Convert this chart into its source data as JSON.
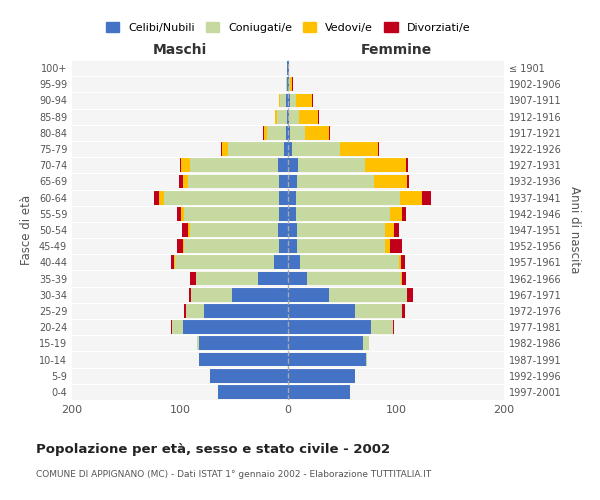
{
  "age_groups": [
    "0-4",
    "5-9",
    "10-14",
    "15-19",
    "20-24",
    "25-29",
    "30-34",
    "35-39",
    "40-44",
    "45-49",
    "50-54",
    "55-59",
    "60-64",
    "65-69",
    "70-74",
    "75-79",
    "80-84",
    "85-89",
    "90-94",
    "95-99",
    "100+"
  ],
  "birth_years": [
    "1997-2001",
    "1992-1996",
    "1987-1991",
    "1982-1986",
    "1977-1981",
    "1972-1976",
    "1967-1971",
    "1962-1966",
    "1957-1961",
    "1952-1956",
    "1947-1951",
    "1942-1946",
    "1937-1941",
    "1932-1936",
    "1927-1931",
    "1922-1926",
    "1917-1921",
    "1912-1916",
    "1907-1911",
    "1902-1906",
    "≤ 1901"
  ],
  "males": {
    "celibi": [
      65,
      72,
      82,
      82,
      97,
      78,
      52,
      28,
      13,
      8,
      9,
      8,
      8,
      8,
      9,
      4,
      2,
      1,
      2,
      1,
      1
    ],
    "coniugati": [
      0,
      0,
      0,
      2,
      10,
      16,
      38,
      57,
      92,
      88,
      82,
      88,
      107,
      85,
      82,
      52,
      17,
      9,
      5,
      1,
      0
    ],
    "vedovi": [
      0,
      0,
      0,
      0,
      0,
      0,
      0,
      0,
      1,
      1,
      2,
      3,
      4,
      4,
      8,
      5,
      3,
      2,
      1,
      0,
      0
    ],
    "divorziati": [
      0,
      0,
      0,
      0,
      1,
      2,
      2,
      6,
      2,
      6,
      5,
      4,
      5,
      4,
      1,
      1,
      1,
      0,
      0,
      0,
      0
    ]
  },
  "females": {
    "nubili": [
      57,
      62,
      72,
      69,
      77,
      62,
      38,
      18,
      11,
      8,
      8,
      7,
      7,
      8,
      9,
      4,
      2,
      1,
      2,
      1,
      1
    ],
    "coniugate": [
      0,
      0,
      1,
      6,
      20,
      44,
      72,
      87,
      92,
      82,
      82,
      87,
      97,
      72,
      62,
      44,
      14,
      9,
      5,
      1,
      0
    ],
    "vedove": [
      0,
      0,
      0,
      0,
      0,
      0,
      0,
      1,
      2,
      4,
      8,
      12,
      20,
      30,
      38,
      35,
      22,
      18,
      15,
      2,
      0
    ],
    "divorziate": [
      0,
      0,
      0,
      0,
      1,
      2,
      6,
      3,
      3,
      12,
      5,
      3,
      8,
      2,
      2,
      1,
      1,
      1,
      1,
      1,
      0
    ]
  },
  "colors": {
    "celibi_nubili": "#4472c4",
    "coniugati": "#c5d9a0",
    "vedovi": "#ffc000",
    "divorziati": "#c0001a"
  },
  "title": "Popolazione per età, sesso e stato civile - 2002",
  "subtitle": "COMUNE DI APPIGNANO (MC) - Dati ISTAT 1° gennaio 2002 - Elaborazione TUTTITALIA.IT",
  "xlabel_left": "Maschi",
  "xlabel_right": "Femmine",
  "ylabel_left": "Fasce di età",
  "ylabel_right": "Anni di nascita",
  "xlim": 200,
  "bg_color": "#ffffff",
  "grid_color": "#cccccc"
}
